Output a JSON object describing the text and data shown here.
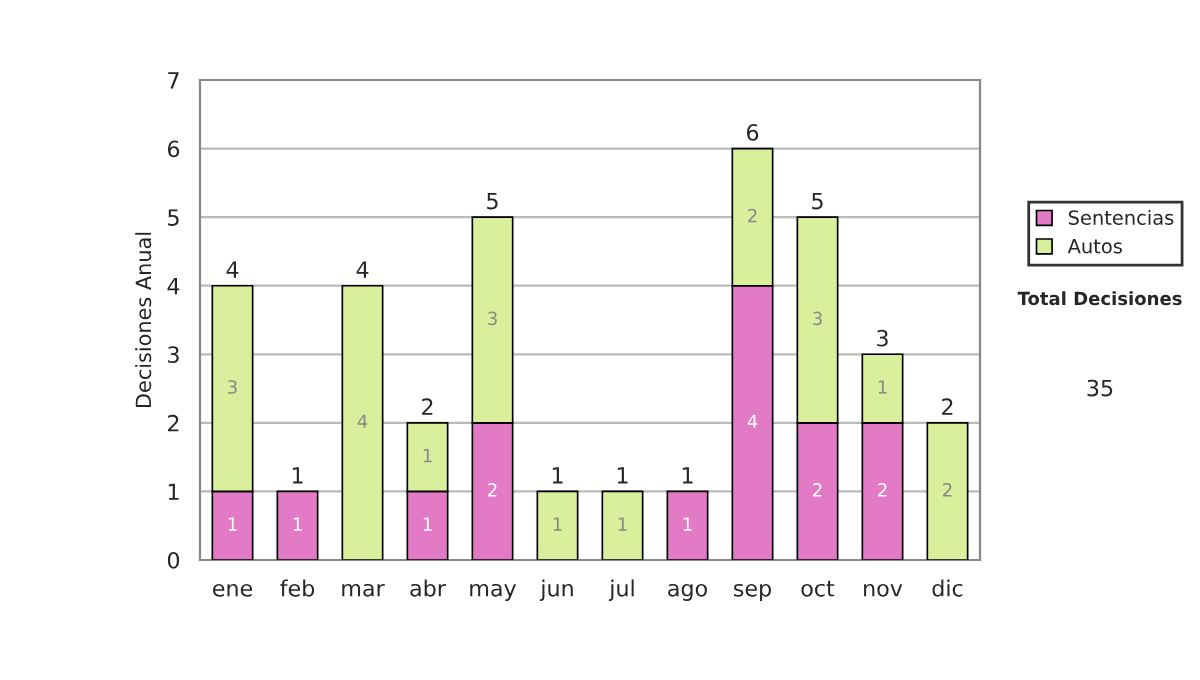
{
  "chart_data": {
    "type": "bar",
    "stacked": true,
    "ylabel": "Decisiones Anual",
    "categories": [
      "ene",
      "feb",
      "mar",
      "abr",
      "may",
      "jun",
      "jul",
      "ago",
      "sep",
      "oct",
      "nov",
      "dic"
    ],
    "series": [
      {
        "name": "Sentencias",
        "color": "#e27ac6",
        "values": [
          1,
          1,
          0,
          1,
          2,
          0,
          0,
          1,
          4,
          2,
          2,
          0
        ],
        "value_labels": [
          "1",
          "1",
          null,
          "1",
          "2",
          null,
          null,
          "1",
          "4",
          "2",
          "2",
          null
        ]
      },
      {
        "name": "Autos",
        "color": "#d9ef9c",
        "values": [
          3,
          0,
          4,
          1,
          3,
          1,
          1,
          0,
          2,
          3,
          1,
          2
        ],
        "value_labels": [
          "3",
          null,
          "4",
          "1",
          "3",
          "1",
          "1",
          null,
          "2",
          "3",
          "1",
          "2"
        ]
      }
    ],
    "totals": [
      "4",
      "1",
      "4",
      "2",
      "5",
      "1",
      "1",
      "1",
      "6",
      "5",
      "3",
      "2"
    ],
    "ylim": [
      0,
      7
    ],
    "yticks": [
      0,
      1,
      2,
      3,
      4,
      5,
      6,
      7
    ],
    "grid": "y",
    "legend": "right",
    "annotations": [
      "Total Decisiones",
      "35"
    ]
  }
}
